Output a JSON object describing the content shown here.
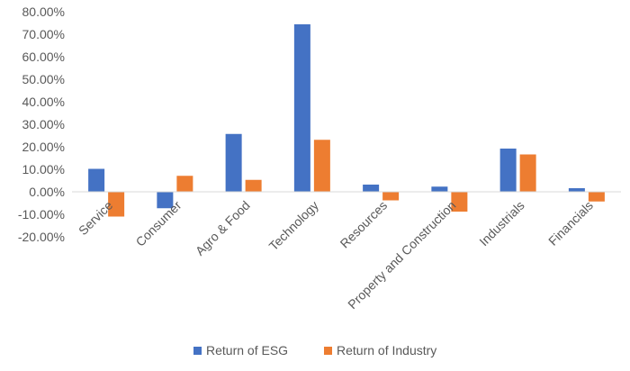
{
  "chart_data": {
    "type": "bar",
    "categories": [
      "Service",
      "Consumer",
      "Agro & Food",
      "Technology",
      "Resources",
      "Property and Construction",
      "Industrials",
      "Financials"
    ],
    "series": [
      {
        "name": "Return of ESG",
        "color": "#4472C4",
        "values": [
          10.2,
          -7.3,
          25.7,
          74.4,
          3.2,
          2.3,
          19.2,
          1.6
        ]
      },
      {
        "name": "Return of Industry",
        "color": "#ED7D31",
        "values": [
          -11.0,
          7.1,
          5.3,
          23.1,
          -3.8,
          -8.8,
          16.6,
          -4.3
        ]
      }
    ],
    "ylim": [
      -20,
      80
    ],
    "yticks": [
      -20,
      -10,
      0,
      10,
      20,
      30,
      40,
      50,
      60,
      70,
      80
    ],
    "ytick_labels": [
      "-20.00%",
      "-10.00%",
      "0.00%",
      "10.00%",
      "20.00%",
      "30.00%",
      "40.00%",
      "50.00%",
      "60.00%",
      "70.00%",
      "80.00%"
    ],
    "grid": false,
    "legend_position": "bottom"
  }
}
